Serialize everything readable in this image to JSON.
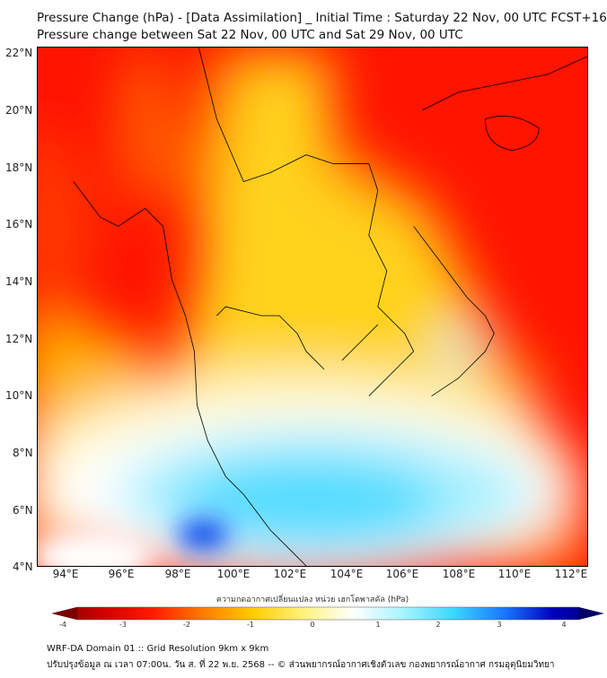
{
  "header": {
    "title": "Pressure Change (hPa) - [Data Assimilation] _ Initial Time : Saturday 22 Nov, 00 UTC FCST+168",
    "subtitle": "Pressure change between Sat 22 Nov, 00 UTC and Sat 29 Nov, 00 UTC"
  },
  "map": {
    "lat_labels": [
      "22°N",
      "20°N",
      "18°N",
      "16°N",
      "14°N",
      "12°N",
      "10°N",
      "8°N",
      "6°N",
      "4°N"
    ],
    "lon_labels": [
      "94°E",
      "96°E",
      "98°E",
      "100°E",
      "102°E",
      "104°E",
      "106°E",
      "108°E",
      "110°E",
      "112°E"
    ]
  },
  "colorbar": {
    "title": "ความกดอากาศเปลี่ยนแปลง หน่วย เฮกโตพาสคัล (hPa)",
    "ticks": [
      "-4",
      "-3",
      "-2",
      "-1",
      "0",
      "1",
      "2",
      "3",
      "4"
    ],
    "colors": [
      "#7a0000",
      "#d00000",
      "#ff1a00",
      "#ff7a00",
      "#ffcc00",
      "#fff27a",
      "#ffffff",
      "#a8f4ff",
      "#3ad8ff",
      "#1a7aff",
      "#0000c0",
      "#00006a"
    ]
  },
  "footer": {
    "line1": "WRF-DA Domain 01 :: Grid Resolution 9km x 9km",
    "line2": "ปรับปรุงข้อมูล ณ เวลา 07:00น. วัน ส. ที่ 22 พ.ย. 2568 -- © ส่วนพยากรณ์อากาศเชิงตัวเลข กองพยากรณ์อากาศ กรมอุตุนิยมวิทยา"
  }
}
